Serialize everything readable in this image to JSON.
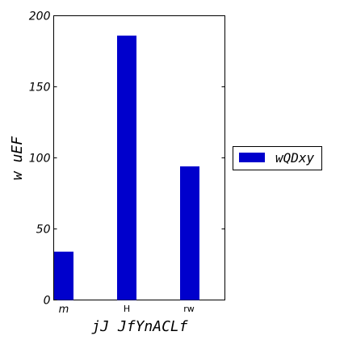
{
  "chart_data": {
    "type": "bar",
    "categories": [
      "m",
      "H",
      "rw"
    ],
    "series": [
      {
        "name": "wQDxy",
        "values": [
          34,
          186,
          94
        ]
      }
    ],
    "xlabel": "jJ JfYnACLf",
    "ylabel": "w uEF",
    "ylim": [
      0,
      200
    ],
    "yticks": [
      "0",
      "50",
      "100",
      "150",
      "200"
    ],
    "bar_color": "#0000cc",
    "grid": false,
    "legend_position": "right-outside"
  }
}
